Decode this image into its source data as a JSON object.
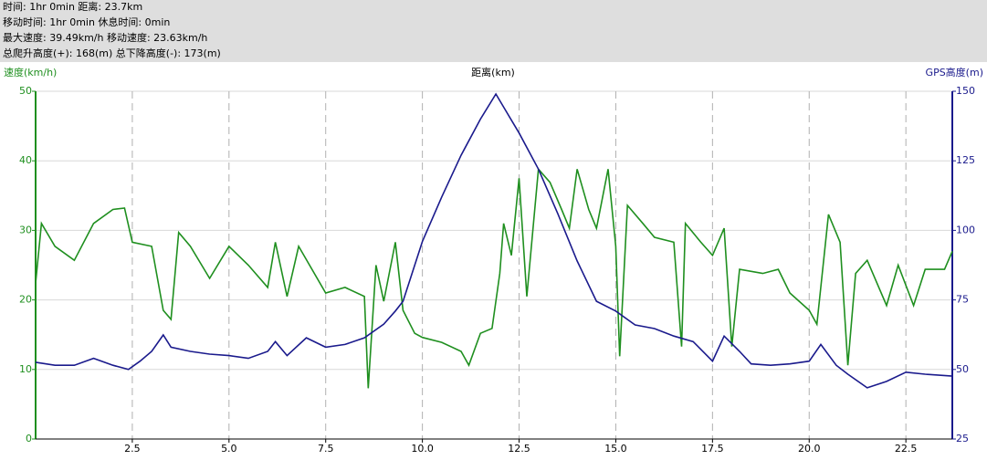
{
  "chart_data": {
    "type": "line",
    "summary": [
      "时间: 1hr 0min  距离: 23.7km",
      "移动时间: 1hr 0min  休息时间: 0min",
      "最大速度: 39.49km/h  移动速度: 23.63km/h",
      "总爬升高度(+): 168(m)  总下降高度(-): 173(m)"
    ],
    "x_label": "距离(km)",
    "xlim": [
      0,
      23.7
    ],
    "xticks": [
      2.5,
      {
        "value": 5,
        "label": "5.0"
      },
      7.5,
      {
        "value": 10,
        "label": "10.0"
      },
      12.5,
      {
        "value": 15,
        "label": "15.0"
      },
      17.5,
      {
        "value": 20,
        "label": "20.0"
      },
      22.5
    ],
    "ylim": [
      0,
      50
    ],
    "yticks": [
      0,
      10,
      20,
      30,
      40,
      50
    ],
    "y2lim": [
      25,
      150
    ],
    "y2ticks": [
      25,
      50,
      75,
      100,
      125,
      150
    ],
    "grid": true,
    "series": [
      {
        "name": "速度(km/h)",
        "color": "#1f8f1f",
        "x": [
          0,
          0.15,
          0.5,
          1.0,
          1.5,
          2.0,
          2.3,
          2.5,
          3.0,
          3.3,
          3.5,
          3.7,
          4.0,
          4.5,
          5.0,
          5.5,
          6.0,
          6.2,
          6.5,
          6.8,
          7.5,
          8.0,
          8.5,
          8.6,
          8.8,
          9.0,
          9.3,
          9.5,
          9.8,
          10.0,
          10.5,
          11.0,
          11.2,
          11.5,
          11.8,
          12.0,
          12.1,
          12.3,
          12.5,
          12.7,
          13.0,
          13.3,
          13.6,
          13.8,
          14.0,
          14.3,
          14.5,
          14.8,
          15.0,
          15.1,
          15.3,
          15.7,
          16.0,
          16.5,
          16.7,
          16.8,
          17.2,
          17.5,
          17.8,
          18.0,
          18.2,
          18.8,
          19.2,
          19.5,
          20.0,
          20.2,
          20.5,
          20.8,
          21.0,
          21.2,
          21.5,
          22.0,
          22.3,
          22.7,
          23.0,
          23.5,
          23.7
        ],
        "values": [
          22.4,
          31,
          27.7,
          25.7,
          31,
          33,
          33.2,
          28.3,
          27.7,
          18.5,
          17.2,
          29.7,
          27.7,
          23.1,
          27.7,
          25,
          21.8,
          28.3,
          20.5,
          27.7,
          21,
          21.8,
          20.5,
          7.3,
          25,
          19.8,
          28.3,
          18.5,
          15.2,
          14.6,
          13.9,
          12.6,
          10.6,
          15.2,
          15.9,
          23.8,
          31,
          26.4,
          37.5,
          20.5,
          38.8,
          36.9,
          33,
          30.3,
          38.8,
          33,
          30.3,
          38.8,
          27.7,
          11.9,
          33.6,
          31,
          29,
          28.3,
          13.3,
          31,
          28.3,
          26.4,
          30.3,
          13.3,
          24.4,
          23.8,
          24.4,
          21,
          18.5,
          16.5,
          32.3,
          28.3,
          10.6,
          23.8,
          25.7,
          19.2,
          25,
          19.2,
          24.4,
          24.4,
          27
        ]
      },
      {
        "name": "GPS高度(m)",
        "color": "#1a1a8c",
        "axis": "y2",
        "x": [
          0,
          0.5,
          1.0,
          1.5,
          2.0,
          2.4,
          2.7,
          3.0,
          3.3,
          3.5,
          4.0,
          4.5,
          5.0,
          5.5,
          6.0,
          6.2,
          6.5,
          7.0,
          7.5,
          8.0,
          8.5,
          9.0,
          9.3,
          9.5,
          10.0,
          10.5,
          11.0,
          11.5,
          11.9,
          12.2,
          12.5,
          13.0,
          13.5,
          14.0,
          14.5,
          15.0,
          15.5,
          16.0,
          16.5,
          17.0,
          17.5,
          17.8,
          18.2,
          18.5,
          19.0,
          19.5,
          20.0,
          20.3,
          20.7,
          21.0,
          21.5,
          22.0,
          22.5,
          23.0,
          23.7
        ],
        "values": [
          52.6,
          51.5,
          51.5,
          54,
          51.5,
          50,
          53,
          56.5,
          62.4,
          58,
          56.5,
          55.5,
          55,
          54,
          56.5,
          60,
          55,
          61.4,
          58,
          59,
          61.4,
          66.3,
          71,
          74.5,
          96,
          112,
          127,
          140,
          149,
          142,
          135,
          122,
          106,
          89,
          74.5,
          71,
          66,
          64.7,
          62,
          60,
          53,
          62,
          56.5,
          52,
          51.5,
          52,
          53,
          59,
          51.5,
          48.3,
          43.4,
          45.7,
          49,
          48.3,
          47.6
        ]
      }
    ]
  }
}
